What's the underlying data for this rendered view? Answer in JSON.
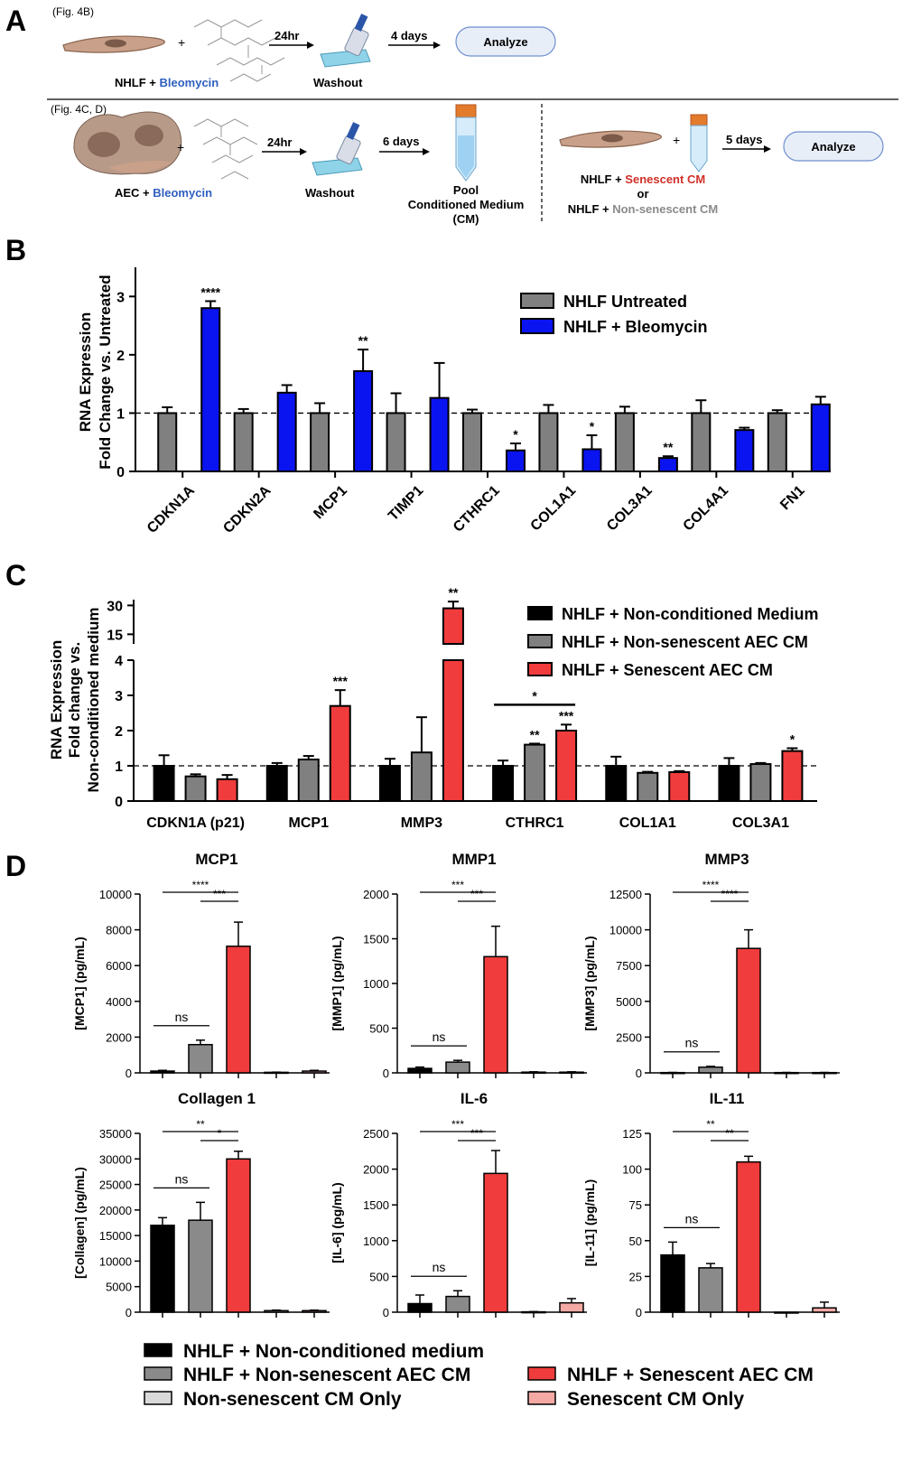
{
  "panelA": {
    "label": "A",
    "row1": {
      "ref": "(Fig. 4B)",
      "cells_text": "NHLF + ",
      "drug": "Bleomycin",
      "time1": "24hr",
      "washout": "Washout",
      "time2": "4 days",
      "analyze": "Analyze"
    },
    "row2": {
      "ref": "(Fig. 4C, D)",
      "cells_text": "AEC + ",
      "drug": "Bleomycin",
      "time1": "24hr",
      "washout": "Washout",
      "time2": "6 days",
      "pool_line1": "Pool",
      "pool_line2": "Conditioned Medium",
      "pool_line3": "(CM)",
      "time3": "5 days",
      "analyze": "Analyze",
      "nhlf_prefix1": "NHLF + ",
      "cm_senescent": "Senescent CM",
      "or": "or",
      "nhlf_prefix2": "NHLF + ",
      "cm_nonsenescent": "Non-senescent CM"
    },
    "colors": {
      "blue": "#2f5fbf",
      "red": "#d03028",
      "gray": "#8a8a8a",
      "box_fill": "#e8eef8",
      "box_stroke": "#6f8fcf"
    }
  },
  "chart_data": [
    {
      "panel": "B",
      "type": "bar",
      "ylabel_line1": "RNA Expression",
      "ylabel_line2": "Fold Change vs. Untreated",
      "ylim": [
        0,
        3.5
      ],
      "yticks": [
        "0",
        "1",
        "2",
        "3"
      ],
      "reference_line": 1,
      "categories": [
        "CDKN1A",
        "CDKN2A",
        "MCP1",
        "TIMP1",
        "CTHRC1",
        "COL1A1",
        "COL3A1",
        "COL4A1",
        "FN1"
      ],
      "series": [
        {
          "name": "NHLF Untreated",
          "color": "#808080",
          "values": [
            1.0,
            1.0,
            1.0,
            1.0,
            1.0,
            1.0,
            1.0,
            1.0,
            1.0
          ],
          "errors": [
            0.1,
            0.07,
            0.17,
            0.34,
            0.06,
            0.14,
            0.11,
            0.22,
            0.05
          ]
        },
        {
          "name": "NHLF + Bleomycin",
          "color": "#0a14f0",
          "values": [
            2.8,
            1.35,
            1.72,
            1.26,
            0.36,
            0.38,
            0.23,
            0.71,
            1.15
          ],
          "errors": [
            0.12,
            0.13,
            0.37,
            0.6,
            0.12,
            0.24,
            0.03,
            0.04,
            0.13
          ]
        }
      ],
      "annotations": [
        "****",
        "",
        "**",
        "",
        "*",
        "*",
        "**",
        "",
        ""
      ]
    },
    {
      "panel": "C",
      "type": "bar",
      "ylabel_line1": "RNA Expression",
      "ylabel_line2": "Fold change vs.",
      "ylabel_line3": "Non-conditioned medium",
      "ylim_lower": [
        0,
        4
      ],
      "yticks_lower": [
        "0",
        "1",
        "2",
        "3",
        "4"
      ],
      "ylim_upper": [
        10,
        33
      ],
      "yticks_upper": [
        "15",
        "30"
      ],
      "reference_line": 1,
      "categories": [
        "CDKN1A (p21)",
        "MCP1",
        "MMP3",
        "CTHRC1",
        "COL1A1",
        "COL3A1"
      ],
      "series": [
        {
          "name": "NHLF + Non-conditioned Medium",
          "color": "#000000",
          "values": [
            1.0,
            1.0,
            1.0,
            1.0,
            1.0,
            1.0
          ],
          "errors": [
            0.3,
            0.08,
            0.2,
            0.15,
            0.26,
            0.22
          ]
        },
        {
          "name": "NHLF + Non-senescent AEC CM",
          "color": "#808080",
          "values": [
            0.7,
            1.18,
            1.38,
            1.6,
            0.8,
            1.05
          ],
          "errors": [
            0.06,
            0.1,
            1.0,
            0.03,
            0.03,
            0.03
          ]
        },
        {
          "name": "NHLF + Senescent AEC CM",
          "color": "#f03c3c",
          "values": [
            0.62,
            2.7,
            28.5,
            2.0,
            0.82,
            1.42
          ],
          "errors": [
            0.12,
            0.45,
            3.5,
            0.17,
            0.03,
            0.08
          ]
        }
      ],
      "annotations": [
        [
          "",
          "",
          ""
        ],
        [
          "",
          "",
          "***"
        ],
        [
          "",
          "",
          "**"
        ],
        [
          "",
          "**",
          "***"
        ],
        [
          "",
          "",
          ""
        ],
        [
          "",
          "",
          "*"
        ]
      ],
      "bracket": {
        "category": "CTHRC1",
        "label": "*"
      }
    },
    {
      "panel": "D",
      "type": "bar",
      "groups": [
        "NHLF + Non-conditioned medium",
        "NHLF + Non-senescent AEC CM",
        "NHLF + Senescent AEC CM",
        "Non-senescent CM Only",
        "Senescent CM Only"
      ],
      "group_colors": [
        "#000000",
        "#8a8a8a",
        "#f03c3c",
        "#d9d9d9",
        "#f4a9a4"
      ],
      "subplots": [
        {
          "title": "MCP1",
          "ylabel": "[MCP1] (pg/mL)",
          "ylim": [
            0,
            10000
          ],
          "yticks": [
            "0",
            "2000",
            "4000",
            "6000",
            "8000",
            "10000"
          ],
          "values": [
            100,
            1580,
            7080,
            30,
            100
          ],
          "errors": [
            40,
            250,
            1350,
            10,
            40
          ],
          "sig": [
            "****",
            "***",
            "ns"
          ]
        },
        {
          "title": "MMP1",
          "ylabel": "[MMP1] (pg/mL)",
          "ylim": [
            0,
            2000
          ],
          "yticks": [
            "0",
            "500",
            "1000",
            "1500",
            "2000"
          ],
          "values": [
            50,
            120,
            1300,
            8,
            8
          ],
          "errors": [
            15,
            20,
            340,
            4,
            4
          ],
          "sig": [
            "***",
            "***",
            "ns"
          ]
        },
        {
          "title": "MMP3",
          "ylabel": "[MMP3] (pg/mL)",
          "ylim": [
            0,
            12500
          ],
          "yticks": [
            "0",
            "2500",
            "5000",
            "7500",
            "10000",
            "12500"
          ],
          "values": [
            20,
            400,
            8700,
            20,
            20
          ],
          "errors": [
            10,
            60,
            1300,
            10,
            10
          ],
          "sig": [
            "****",
            "****",
            "ns"
          ]
        },
        {
          "title": "Collagen 1",
          "ylabel": "[Collagen] (pg/mL)",
          "ylim": [
            0,
            35000
          ],
          "yticks": [
            "0",
            "5000",
            "10000",
            "15000",
            "20000",
            "25000",
            "30000",
            "35000"
          ],
          "values": [
            17000,
            18000,
            30000,
            300,
            300
          ],
          "errors": [
            1500,
            3500,
            1500,
            100,
            100
          ],
          "sig": [
            "**",
            "*",
            "ns"
          ]
        },
        {
          "title": "IL-6",
          "ylabel": "[IL-6] (pg/mL)",
          "ylim": [
            0,
            2500
          ],
          "yticks": [
            "0",
            "500",
            "1000",
            "1500",
            "2000",
            "2500"
          ],
          "values": [
            120,
            220,
            1940,
            5,
            130
          ],
          "errors": [
            120,
            80,
            320,
            3,
            60
          ],
          "sig": [
            "***",
            "***",
            "ns"
          ]
        },
        {
          "title": "IL-11",
          "ylabel": "[IL-11] (pg/mL)",
          "ylim": [
            0,
            125
          ],
          "yticks": [
            "0",
            "25",
            "50",
            "75",
            "100",
            "125"
          ],
          "values": [
            40,
            31,
            105,
            0,
            3
          ],
          "errors": [
            9,
            3,
            4,
            0,
            4
          ],
          "sig": [
            "**",
            "**",
            "ns"
          ]
        }
      ]
    }
  ],
  "legend_B": [
    "NHLF Untreated",
    "NHLF + Bleomycin"
  ],
  "legend_C": [
    "NHLF + Non-conditioned Medium",
    "NHLF + Non-senescent AEC CM",
    "NHLF + Senescent AEC CM"
  ],
  "legend_D": [
    "NHLF + Non-conditioned medium",
    "NHLF + Non-senescent AEC CM",
    "NHLF + Senescent AEC CM",
    "Non-senescent CM Only",
    "Senescent CM Only"
  ],
  "panel_labels": {
    "B": "B",
    "C": "C",
    "D": "D"
  }
}
